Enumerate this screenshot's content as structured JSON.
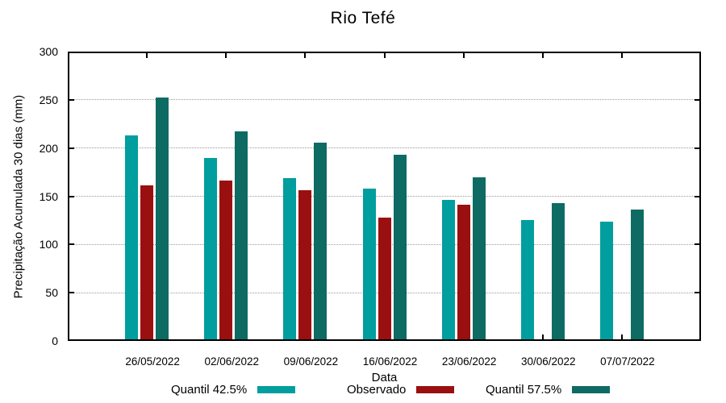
{
  "chart_data": {
    "type": "bar",
    "title": "Rio Tefé",
    "xlabel": "Data",
    "ylabel": "Precipitação Acumulada 30 dias (mm)",
    "categories": [
      "26/05/2022",
      "02/06/2022",
      "09/06/2022",
      "16/06/2022",
      "23/06/2022",
      "30/06/2022",
      "07/07/2022"
    ],
    "series": [
      {
        "name": "Quantil 42.5%",
        "color": "#009e9e",
        "values": [
          213,
          190,
          169,
          158,
          146,
          125,
          124
        ]
      },
      {
        "name": "Observado",
        "color": "#9a1010",
        "values": [
          161,
          166,
          156,
          128,
          141,
          null,
          null
        ]
      },
      {
        "name": "Quantil 57.5%",
        "color": "#0d6b63",
        "values": [
          252,
          217,
          206,
          193,
          170,
          143,
          136
        ]
      }
    ],
    "ylim": [
      0,
      300
    ],
    "yticks": [
      0,
      50,
      100,
      150,
      200,
      250,
      300
    ],
    "grid": true,
    "legend_position": "bottom",
    "axis_color": "#000000",
    "grid_color": "#9a9a9a"
  }
}
